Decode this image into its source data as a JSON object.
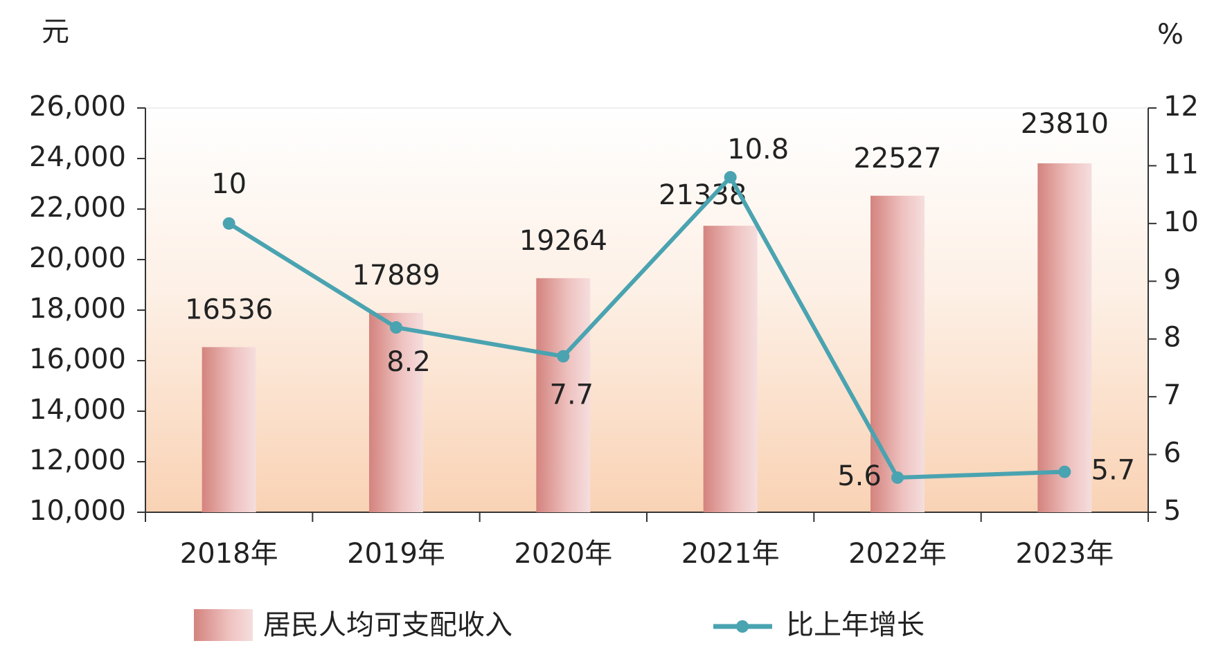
{
  "chart_data": {
    "type": "bar",
    "categories": [
      "2018年",
      "2019年",
      "2020年",
      "2021年",
      "2022年",
      "2023年"
    ],
    "y_label": "元",
    "y2_label": "%",
    "series": [
      {
        "name": "居民人均可支配收入",
        "type": "bar",
        "color": "#dc9a94",
        "values": [
          16536,
          17889,
          19264,
          21338,
          22527,
          23810
        ]
      },
      {
        "name": "比上年增长",
        "type": "line",
        "axis": "y2",
        "color": "#4aa3b0",
        "values": [
          10,
          8.2,
          7.7,
          10.8,
          5.6,
          5.7
        ]
      }
    ],
    "ylim": [
      10000,
      26000
    ],
    "yticks": [
      {
        "value": 10000,
        "label": "10,000"
      },
      {
        "value": 12000,
        "label": "12,000"
      },
      {
        "value": 14000,
        "label": "14,000"
      },
      {
        "value": 16000,
        "label": "16,000"
      },
      {
        "value": 18000,
        "label": "18,000"
      },
      {
        "value": 20000,
        "label": "20,000"
      },
      {
        "value": 22000,
        "label": "22,000"
      },
      {
        "value": 24000,
        "label": "24,000"
      },
      {
        "value": 26000,
        "label": "26,000"
      }
    ],
    "y2lim": [
      5,
      12
    ],
    "y2ticks": [
      5,
      6,
      7,
      8,
      9,
      10,
      11,
      12
    ]
  }
}
